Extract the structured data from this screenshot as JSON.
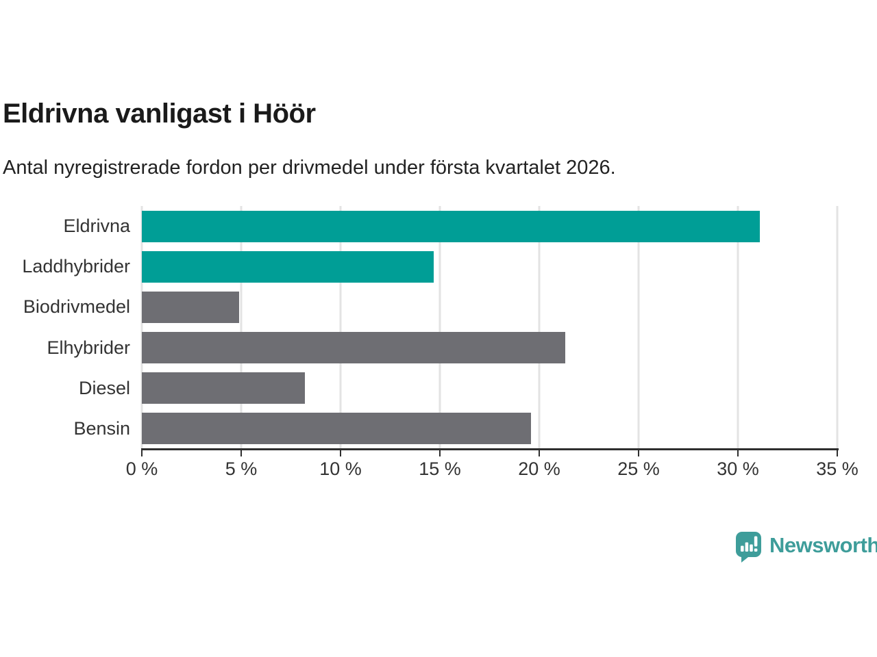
{
  "chart_data": {
    "type": "bar",
    "orientation": "horizontal",
    "title": "Eldrivna vanligast i Höör",
    "subtitle": "Antal nyregistrerade fordon per drivmedel under första kvartalet 2026.",
    "categories": [
      "Eldrivna",
      "Laddhybrider",
      "Biodrivmedel",
      "Elhybrider",
      "Diesel",
      "Bensin"
    ],
    "values": [
      31.1,
      14.7,
      4.9,
      21.3,
      8.2,
      19.6
    ],
    "bar_colors": [
      "#009E96",
      "#009E96",
      "#6E6E73",
      "#6E6E73",
      "#6E6E73",
      "#6E6E73"
    ],
    "highlight_color": "#009E96",
    "default_color": "#6E6E73",
    "xlim": [
      0,
      35
    ],
    "x_ticks": [
      0,
      5,
      10,
      15,
      20,
      25,
      30,
      35
    ],
    "x_tick_labels": [
      "0 %",
      "5 %",
      "10 %",
      "15 %",
      "20 %",
      "25 %",
      "30 %",
      "35 %"
    ],
    "grid": true,
    "gridline_color": "#e3e3e3",
    "axis_color": "#2e2e2e",
    "legend": "none"
  },
  "branding": {
    "logo_text": "Newsworthy",
    "logo_color": "#3E9D9A",
    "logo_icon": "bar-chart-speech-bubble"
  }
}
